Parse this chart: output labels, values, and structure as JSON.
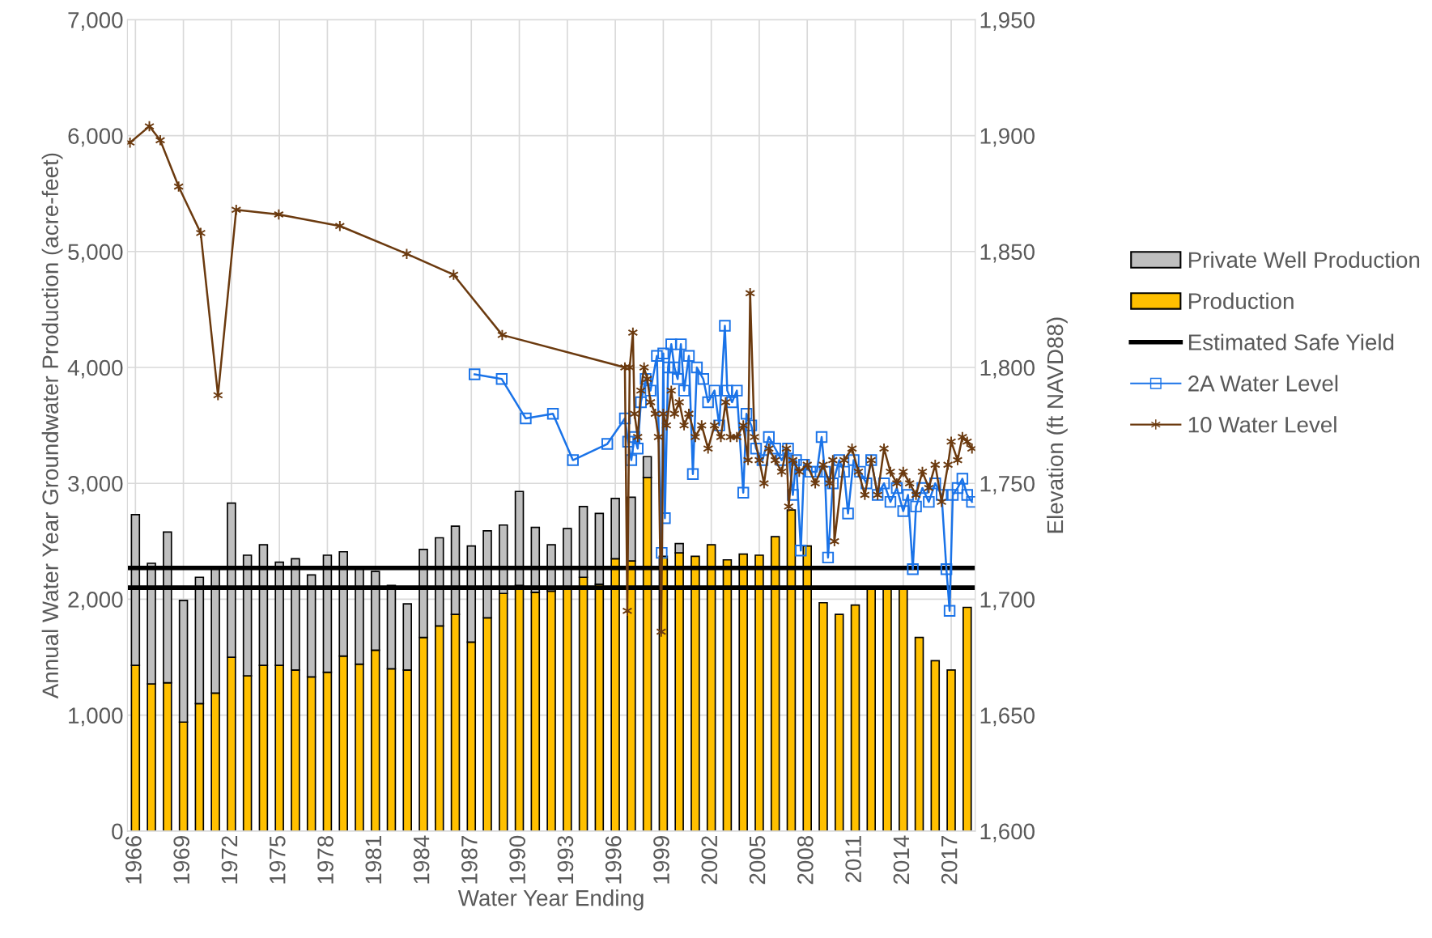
{
  "chart_data": {
    "type": "bar",
    "stacked": true,
    "xlabel": "Water Year Ending",
    "ylabel": "Annual Water Year Groundwater Production (acre-feet)",
    "y2label": "Elevation (ft NAVD88)",
    "x": [
      1966,
      1967,
      1968,
      1969,
      1970,
      1971,
      1972,
      1973,
      1974,
      1975,
      1976,
      1977,
      1978,
      1979,
      1980,
      1981,
      1982,
      1983,
      1984,
      1985,
      1986,
      1987,
      1988,
      1989,
      1990,
      1991,
      1992,
      1993,
      1994,
      1995,
      1996,
      1997,
      1998,
      1999,
      2000,
      2001,
      2002,
      2003,
      2004,
      2005,
      2006,
      2007,
      2008,
      2009,
      2010,
      2011,
      2012,
      2013,
      2014,
      2015,
      2016,
      2017,
      2018
    ],
    "xlim": [
      1965.5,
      2018.5
    ],
    "xticks": [
      1966,
      1969,
      1972,
      1975,
      1978,
      1981,
      1984,
      1987,
      1990,
      1993,
      1996,
      1999,
      2002,
      2005,
      2008,
      2011,
      2014,
      2017
    ],
    "ylim": [
      0,
      7000
    ],
    "yticks": [
      0,
      {
        "value": 1000,
        "label": "1,000"
      },
      {
        "value": 2000,
        "label": "2,000"
      },
      {
        "value": 3000,
        "label": "3,000"
      },
      {
        "value": 4000,
        "label": "4,000"
      },
      {
        "value": 5000,
        "label": "5,000"
      },
      {
        "value": 6000,
        "label": "6,000"
      },
      {
        "value": 7000,
        "label": "7,000"
      }
    ],
    "y2lim": [
      1600,
      1950
    ],
    "y2ticks": [
      {
        "value": 1600,
        "label": "1,600"
      },
      {
        "value": 1650,
        "label": "1,650"
      },
      {
        "value": 1700,
        "label": "1,700"
      },
      {
        "value": 1750,
        "label": "1,750"
      },
      {
        "value": 1800,
        "label": "1,800"
      },
      {
        "value": 1850,
        "label": "1,850"
      },
      {
        "value": 1900,
        "label": "1,900"
      },
      {
        "value": 1950,
        "label": "1,950"
      }
    ],
    "grid": true,
    "legend": "right",
    "ref_lines": [
      {
        "axis": "y",
        "value": 2270,
        "label": "Estimated Safe Yield",
        "color": "#000000"
      },
      {
        "axis": "y",
        "value": 2100,
        "color": "#000000"
      }
    ],
    "series": [
      {
        "name": "Production",
        "color": "#ffc000",
        "values": [
          1430,
          1270,
          1280,
          940,
          1100,
          1190,
          1500,
          1340,
          1430,
          1430,
          1390,
          1330,
          1370,
          1510,
          1440,
          1560,
          1400,
          1390,
          1670,
          1770,
          1870,
          1630,
          1840,
          2050,
          2120,
          2060,
          2070,
          2100,
          2190,
          2130,
          2350,
          2330,
          3050,
          2370,
          2400,
          2370,
          2470,
          2340,
          2390,
          2380,
          2540,
          2770,
          2460,
          1970,
          1870,
          1950,
          2100,
          2100,
          2100,
          1670,
          1470,
          1390,
          1930
        ]
      },
      {
        "name": "Private Well Production",
        "color": "#bfbfbf",
        "values": [
          1300,
          1040,
          1300,
          1050,
          1090,
          1070,
          1330,
          1040,
          1040,
          890,
          960,
          880,
          1010,
          900,
          820,
          680,
          720,
          570,
          760,
          760,
          760,
          830,
          750,
          590,
          810,
          560,
          400,
          510,
          610,
          610,
          520,
          550,
          180,
          null,
          80,
          null,
          null,
          null,
          null,
          null,
          null,
          null,
          null,
          null,
          null,
          null,
          null,
          null,
          null,
          null,
          null,
          null,
          null
        ]
      },
      {
        "name": "2A Water Level",
        "type": "line",
        "axis": "y2",
        "marker": "square",
        "color": "#1a73e8",
        "x": [
          1987.2,
          1988.9,
          1990.4,
          1992.1,
          1993.35,
          1995.5,
          1996.6,
          1996.8,
          1997.0,
          1997.2,
          1997.4,
          1997.6,
          1997.9,
          1998.2,
          1998.6,
          1998.9,
          1999.0,
          1999.1,
          1999.3,
          1999.5,
          1999.7,
          1999.9,
          2000.1,
          2000.3,
          2000.6,
          2000.85,
          2001.1,
          2001.5,
          2001.8,
          2002.2,
          2002.5,
          2002.85,
          2003.0,
          2003.3,
          2003.6,
          2004.0,
          2004.2,
          2004.5,
          2004.8,
          2005.2,
          2005.6,
          2006.0,
          2006.4,
          2006.8,
          2007.1,
          2007.3,
          2007.6,
          2007.8,
          2008.2,
          2008.6,
          2008.9,
          2009.1,
          2009.3,
          2009.6,
          2010.0,
          2010.3,
          2010.55,
          2010.9,
          2011.3,
          2011.7,
          2012.0,
          2012.4,
          2012.8,
          2013.2,
          2013.6,
          2014.0,
          2014.3,
          2014.6,
          2014.8,
          2015.2,
          2015.6,
          2016.0,
          2016.4,
          2016.7,
          2016.9,
          2017.1,
          2017.4,
          2017.7,
          2018.0,
          2018.3
        ],
        "values": [
          1797,
          1795,
          1778,
          1780,
          1760,
          1767,
          1778,
          1768,
          1760,
          1770,
          1765,
          1785,
          1795,
          1790,
          1805,
          1720,
          1806,
          1735,
          1800,
          1810,
          1800,
          1795,
          1810,
          1790,
          1805,
          1754,
          1800,
          1795,
          1785,
          1790,
          1775,
          1818,
          1790,
          1785,
          1790,
          1746,
          1780,
          1775,
          1765,
          1760,
          1770,
          1765,
          1760,
          1765,
          1745,
          1760,
          1721,
          1758,
          1755,
          1755,
          1770,
          1755,
          1718,
          1750,
          1760,
          1755,
          1737,
          1760,
          1755,
          1750,
          1760,
          1745,
          1750,
          1742,
          1748,
          1738,
          1745,
          1713,
          1740,
          1748,
          1742,
          1750,
          1745,
          1713,
          1695,
          1745,
          1748,
          1752,
          1745,
          1742
        ]
      },
      {
        "name": "10 Water Level",
        "type": "line",
        "axis": "y2",
        "marker": "cross",
        "color": "#6b3a0f",
        "x": [
          1965.66,
          1966.87,
          1967.55,
          1968.7,
          1970.08,
          1971.16,
          1972.3,
          1974.96,
          1978.78,
          1982.96,
          1985.89,
          1988.93,
          1996.6,
          1996.75,
          1996.9,
          1997.1,
          1997.2,
          1997.4,
          1997.6,
          1997.8,
          1998.0,
          1998.2,
          1998.5,
          1998.7,
          1998.87,
          1999.0,
          1999.2,
          1999.5,
          1999.7,
          2000.0,
          2000.3,
          2000.6,
          2001.0,
          2001.4,
          2001.8,
          2002.2,
          2002.6,
          2002.9,
          2003.2,
          2003.6,
          2004.0,
          2004.3,
          2004.43,
          2004.7,
          2005.0,
          2005.3,
          2005.6,
          2006.0,
          2006.4,
          2006.7,
          2006.84,
          2007.1,
          2007.5,
          2008.0,
          2008.5,
          2009.0,
          2009.4,
          2009.6,
          2009.7,
          2010.3,
          2010.8,
          2011.2,
          2011.6,
          2012.0,
          2012.4,
          2012.8,
          2013.2,
          2013.6,
          2014.0,
          2014.4,
          2014.8,
          2015.2,
          2015.6,
          2016.0,
          2016.4,
          2016.8,
          2017.0,
          2017.4,
          2017.7,
          2018.0,
          2018.3
        ],
        "values": [
          1897,
          1904,
          1898,
          1878,
          1858,
          1788,
          1868,
          1866,
          1861,
          1849,
          1840,
          1814,
          1800,
          1695,
          1800,
          1815,
          1780,
          1770,
          1790,
          1800,
          1795,
          1785,
          1780,
          1770,
          1686,
          1780,
          1775,
          1790,
          1780,
          1785,
          1775,
          1780,
          1770,
          1775,
          1765,
          1775,
          1770,
          1785,
          1770,
          1770,
          1775,
          1760,
          1832,
          1770,
          1760,
          1750,
          1765,
          1760,
          1755,
          1765,
          1740,
          1760,
          1755,
          1758,
          1750,
          1758,
          1750,
          1760,
          1725,
          1760,
          1765,
          1755,
          1745,
          1760,
          1745,
          1765,
          1755,
          1750,
          1755,
          1750,
          1745,
          1755,
          1748,
          1758,
          1742,
          1758,
          1768,
          1760,
          1770,
          1768,
          1765
        ]
      }
    ]
  }
}
